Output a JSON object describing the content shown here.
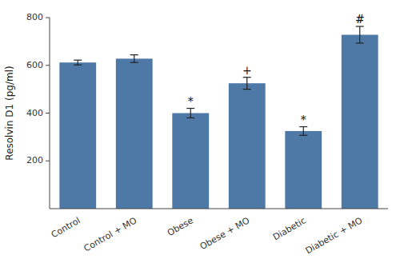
{
  "chart_data": {
    "type": "bar",
    "categories": [
      "Control",
      "Control + MO",
      "Obese",
      "Obese + MO",
      "Diabetic",
      "Diabetic + MO"
    ],
    "values": [
      612,
      628,
      400,
      525,
      325,
      728
    ],
    "errors": [
      10,
      16,
      20,
      25,
      18,
      35
    ],
    "annotations": [
      {
        "text": "*",
        "category": "Obese"
      },
      {
        "text": "+",
        "category": "Obese + MO"
      },
      {
        "text": "*",
        "category": "Diabetic"
      },
      {
        "text": "#",
        "category": "Diabetic + MO"
      }
    ],
    "y_label": "Resolvin D1 (pg/ml)",
    "ylim": [
      0,
      800
    ],
    "yticks": [
      200,
      400,
      600,
      800
    ],
    "color": "#4e79a7",
    "grid": false
  }
}
